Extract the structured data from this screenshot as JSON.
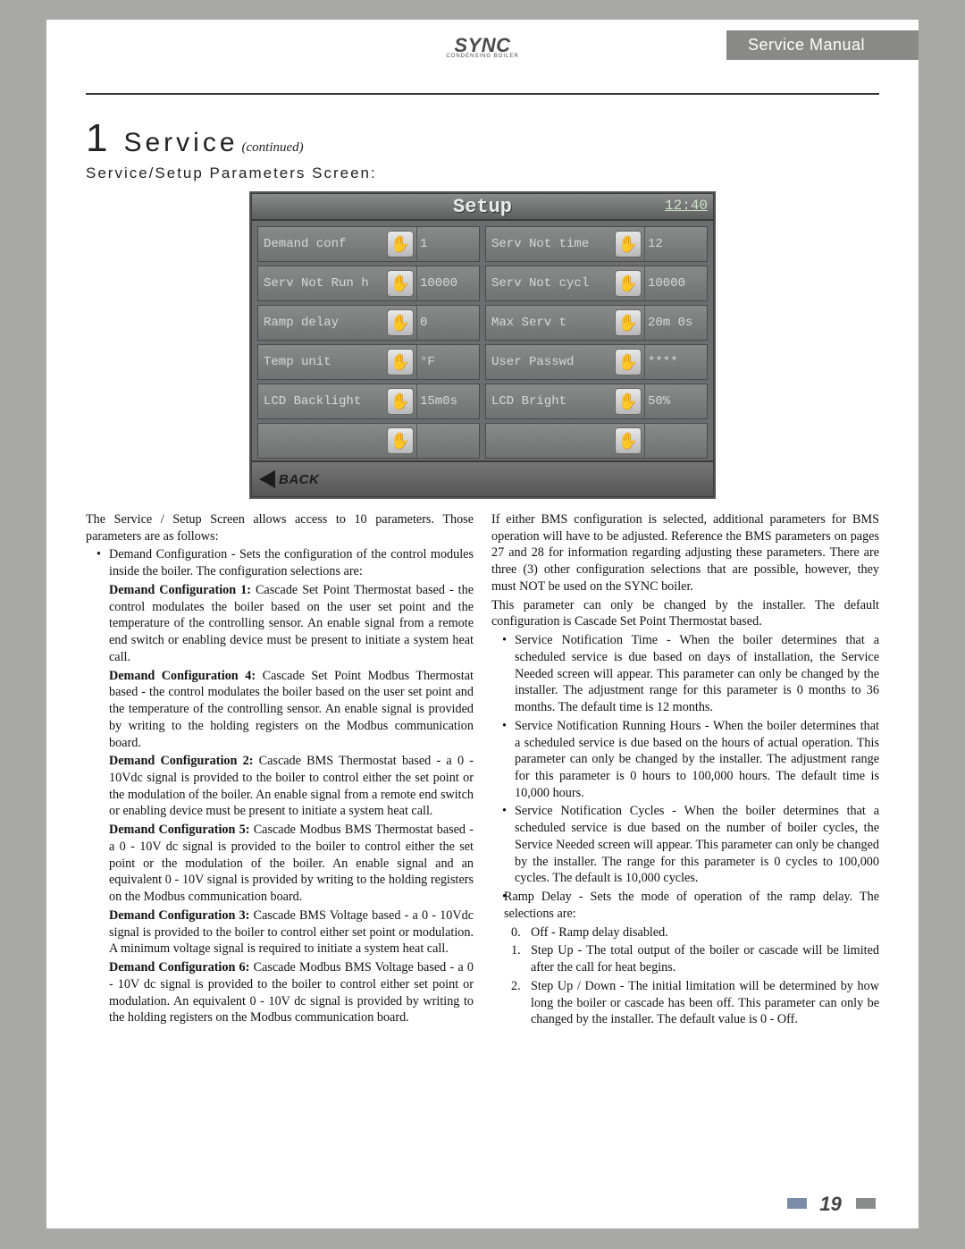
{
  "header": {
    "logo_text": "SYNC",
    "logo_sub": "CONDENSING BOILER",
    "manual_title": "Service Manual"
  },
  "section": {
    "number": "1",
    "title": "Service",
    "continued": "(continued)",
    "subhead": "Service/Setup Parameters Screen:"
  },
  "lcd": {
    "title": "Setup",
    "clock": "12:40",
    "back_label": "BACK",
    "hand_glyph": "✋",
    "rows": [
      {
        "left_label": "Demand conf",
        "left_val": "1",
        "right_label": "Serv Not time",
        "right_val": "12"
      },
      {
        "left_label": "Serv Not Run h",
        "left_val": "10000",
        "right_label": "Serv Not cycl",
        "right_val": "10000"
      },
      {
        "left_label": "Ramp delay",
        "left_val": "0",
        "right_label": "Max Serv t",
        "right_val": "20m 0s"
      },
      {
        "left_label": "Temp unit",
        "left_val": "°F",
        "right_label": "User Passwd",
        "right_val": "****"
      },
      {
        "left_label": "LCD Backlight",
        "left_val": "15m0s",
        "right_label": "LCD Bright",
        "right_val": "50%"
      },
      {
        "left_label": "",
        "left_val": "",
        "right_label": "",
        "right_val": ""
      }
    ]
  },
  "body": {
    "col1": {
      "p1": "The Service / Setup Screen allows access to 10 parameters. Those parameters are as follows:",
      "b1": "Demand Configuration - Sets the configuration of the control modules inside the boiler.  The configuration selections are:",
      "dc1_h": "Demand Configuration 1:",
      "dc1_t": "  Cascade Set Point Thermostat based - the control modulates the boiler based on the user set point and the temperature of the controlling sensor.  An enable signal from a remote end switch or enabling device must be present to initiate a system heat call.",
      "dc4_h": "Demand Configuration 4:",
      "dc4_t": "  Cascade Set Point Modbus Thermostat based - the control modulates the boiler based on the user set point and the temperature of the controlling sensor.  An enable signal is provided by writing to the holding registers on the Modbus communication board.",
      "dc2_h": "Demand Configuration 2:",
      "dc2_t": "  Cascade BMS Thermostat based - a 0 - 10Vdc signal is provided to the boiler to control either the set point or the modulation of the boiler.  An enable signal from a remote end switch or enabling device must be present to initiate a system heat call.",
      "dc5_h": "Demand Configuration 5:",
      "dc5_t": "  Cascade Modbus BMS Thermostat based - a 0 - 10V dc signal is provided to the boiler to control either the set point or the modulation of the boiler.  An enable signal and an equivalent 0 - 10V signal is provided by writing to the holding registers on the Modbus communication board.",
      "dc3_h": "Demand Configuration 3:",
      "dc3_t": "  Cascade BMS Voltage based - a 0 - 10Vdc signal is provided to the boiler to control either set point or modulation.  A minimum voltage signal is required to initiate a system heat call.",
      "dc6_h": "Demand Configuration 6:",
      "dc6_t": "  Cascade Modbus BMS Voltage based - a 0 - 10V dc signal is provided to the boiler to control either set point or modulation.  An equivalent 0 - 10V dc signal is provided by writing to the holding registers on the Modbus communication board."
    },
    "col2": {
      "p1": "If either BMS configuration is selected, additional parameters for BMS operation will have to be adjusted.  Reference the BMS parameters on pages 27 and 28 for information regarding adjusting these parameters.  There are three (3) other configuration selections that are possible, however, they must NOT be used on the SYNC boiler.",
      "p2": "This parameter can only be changed by the installer.  The default configuration is Cascade Set Point Thermostat based.",
      "b_snt": "Service Notification Time - When the boiler determines that a scheduled service is due based on days of installation, the Service Needed screen will appear.  This parameter can only be changed by the installer.  The adjustment range for this parameter is 0 months to 36 months.  The default time is 12 months.",
      "b_snrh": "Service Notification Running Hours - When the boiler determines that a scheduled service is due based on the hours of actual operation.  This parameter can only be changed by the installer.  The adjustment range for this parameter is 0 hours to 100,000 hours.  The default time is 10,000 hours.",
      "b_snc": "Service Notification Cycles - When the boiler determines that a scheduled service is due based on the number of boiler cycles, the Service Needed screen will appear.  This parameter can only be changed by the installer.  The range for this parameter is 0 cycles to 100,000 cycles.  The default is 10,000 cycles.",
      "b_ramp": "Ramp Delay - Sets the mode of operation of the ramp delay. The selections are:",
      "n0": "Off - Ramp delay disabled.",
      "n1": "Step Up - The total output of the boiler or cascade will be limited after the call for heat begins.",
      "n2": "Step Up / Down - The initial limitation will be determined by how long the boiler or cascade has been off.  This parameter can only be changed by the installer.  The default value is  0 - Off."
    }
  },
  "page_number": "19",
  "colors": {
    "page_bg": "#a8a8a6",
    "header_bar": "#898987",
    "lcd_bg": "#6b6e6e",
    "lcd_text": "#d8d8d8"
  }
}
